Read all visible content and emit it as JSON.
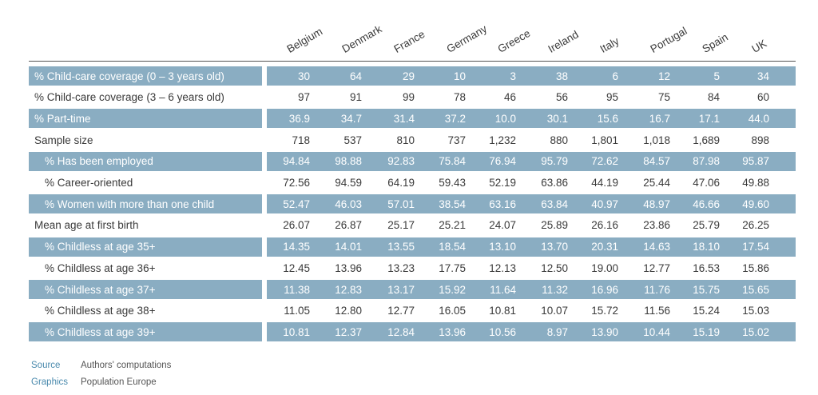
{
  "chart_data": {
    "type": "table",
    "columns": [
      "Belgium",
      "Denmark",
      "France",
      "Germany",
      "Greece",
      "Ireland",
      "Italy",
      "Portugal",
      "Spain",
      "UK"
    ],
    "rows": [
      {
        "label": "% Child-care coverage (0 – 3 years old)",
        "values": [
          "30",
          "64",
          "29",
          "10",
          "3",
          "38",
          "6",
          "12",
          "5",
          "34"
        ],
        "shaded": true,
        "indent": false
      },
      {
        "label": "% Child-care coverage (3 – 6 years old)",
        "values": [
          "97",
          "91",
          "99",
          "78",
          "46",
          "56",
          "95",
          "75",
          "84",
          "60"
        ],
        "shaded": false,
        "indent": false
      },
      {
        "label": "% Part-time",
        "values": [
          "36.9",
          "34.7",
          "31.4",
          "37.2",
          "10.0",
          "30.1",
          "15.6",
          "16.7",
          "17.1",
          "44.0"
        ],
        "shaded": true,
        "indent": false
      },
      {
        "label": "Sample size",
        "values": [
          "718",
          "537",
          "810",
          "737",
          "1,232",
          "880",
          "1,801",
          "1,018",
          "1,689",
          "898"
        ],
        "shaded": false,
        "indent": false
      },
      {
        "label": "% Has been employed",
        "values": [
          "94.84",
          "98.88",
          "92.83",
          "75.84",
          "76.94",
          "95.79",
          "72.62",
          "84.57",
          "87.98",
          "95.87"
        ],
        "shaded": true,
        "indent": true
      },
      {
        "label": "% Career-oriented",
        "values": [
          "72.56",
          "94.59",
          "64.19",
          "59.43",
          "52.19",
          "63.86",
          "44.19",
          "25.44",
          "47.06",
          "49.88"
        ],
        "shaded": false,
        "indent": true
      },
      {
        "label": "% Women with more than one child",
        "values": [
          "52.47",
          "46.03",
          "57.01",
          "38.54",
          "63.16",
          "63.84",
          "40.97",
          "48.97",
          "46.66",
          "49.60"
        ],
        "shaded": true,
        "indent": true
      },
      {
        "label": "Mean age at first birth",
        "values": [
          "26.07",
          "26.87",
          "25.17",
          "25.21",
          "24.07",
          "25.89",
          "26.16",
          "23.86",
          "25.79",
          "26.25"
        ],
        "shaded": false,
        "indent": false
      },
      {
        "label": "% Childless at age 35+",
        "values": [
          "14.35",
          "14.01",
          "13.55",
          "18.54",
          "13.10",
          "13.70",
          "20.31",
          "14.63",
          "18.10",
          "17.54"
        ],
        "shaded": true,
        "indent": true
      },
      {
        "label": "% Childless at age 36+",
        "values": [
          "12.45",
          "13.96",
          "13.23",
          "17.75",
          "12.13",
          "12.50",
          "19.00",
          "12.77",
          "16.53",
          "15.86"
        ],
        "shaded": false,
        "indent": true
      },
      {
        "label": "% Childless at age 37+",
        "values": [
          "11.38",
          "12.83",
          "13.17",
          "15.92",
          "11.64",
          "11.32",
          "16.96",
          "11.76",
          "15.75",
          "15.65"
        ],
        "shaded": true,
        "indent": true
      },
      {
        "label": "% Childless at age 38+",
        "values": [
          "11.05",
          "12.80",
          "12.77",
          "16.05",
          "10.81",
          "10.07",
          "15.72",
          "11.56",
          "15.24",
          "15.03"
        ],
        "shaded": false,
        "indent": true
      },
      {
        "label": "% Childless at age 39+",
        "values": [
          "10.81",
          "12.37",
          "12.84",
          "13.96",
          "10.56",
          "8.97",
          "13.90",
          "10.44",
          "15.19",
          "15.02"
        ],
        "shaded": true,
        "indent": true
      }
    ],
    "colors": {
      "shaded_row": "#8aadc2",
      "accent_text": "#4a8aad",
      "text": "#3a3a3a"
    }
  },
  "footer": {
    "source_key": "Source",
    "source_value": "Authors' computations",
    "graphics_key": "Graphics",
    "graphics_value": "Population Europe"
  }
}
